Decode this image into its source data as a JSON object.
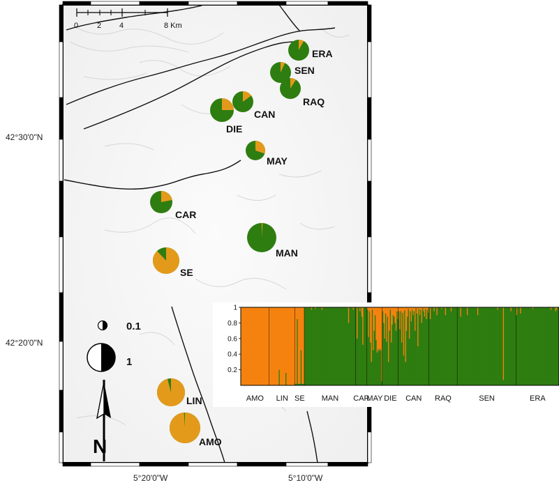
{
  "map": {
    "scale_ticks": [
      "0",
      "2",
      "4",
      "8 Km"
    ],
    "lat_labels": [
      "42°30'0\"N",
      "42°20'0\"N"
    ],
    "lon_labels": [
      "5°20'0\"W",
      "5°10'0\"W"
    ],
    "legend": {
      "small": "0.1",
      "large": "1"
    },
    "north_letter": "N"
  },
  "colors": {
    "green": "#2e7d10",
    "orange": "#e39a1b",
    "orange_bar": "#f5820f",
    "frame": "#000000"
  },
  "populations": [
    {
      "name": "ERA",
      "green": 0.92,
      "orange": 0.08
    },
    {
      "name": "SEN",
      "green": 0.93,
      "orange": 0.07
    },
    {
      "name": "RAQ",
      "green": 0.91,
      "orange": 0.09
    },
    {
      "name": "CAN",
      "green": 0.85,
      "orange": 0.15
    },
    {
      "name": "DIE",
      "green": 0.75,
      "orange": 0.25
    },
    {
      "name": "MAY",
      "green": 0.7,
      "orange": 0.3
    },
    {
      "name": "CAR",
      "green": 0.78,
      "orange": 0.22
    },
    {
      "name": "MAN",
      "green": 0.99,
      "orange": 0.01
    },
    {
      "name": "SE",
      "green": 0.12,
      "orange": 0.88
    },
    {
      "name": "LIN",
      "green": 0.04,
      "orange": 0.96
    },
    {
      "name": "AMO",
      "green": 0.01,
      "orange": 0.99
    }
  ],
  "chart_data": {
    "type": "stacked-bar",
    "y_ticks": [
      "0.2",
      "0.4",
      "0.6",
      "0.8",
      "1"
    ],
    "ylim": [
      0,
      1
    ],
    "groups": [
      "AMO",
      "LIN",
      "SE",
      "MAN",
      "CAR",
      "MAY",
      "DIE",
      "CAN",
      "RAQ",
      "SEN",
      "ERA"
    ],
    "series": [
      "green",
      "orange"
    ],
    "group_green_fraction": {
      "AMO": [
        0,
        0,
        0,
        0,
        0,
        0,
        0,
        0,
        0,
        0,
        0,
        0,
        0,
        0,
        0,
        0,
        0,
        0,
        0,
        0,
        0,
        0,
        0,
        0,
        0,
        0,
        0,
        0,
        0,
        0
      ],
      "LIN": [
        0,
        0,
        0,
        0,
        0,
        0,
        0,
        0,
        0,
        0,
        0.2,
        0,
        0,
        0,
        0,
        0,
        0,
        0.16,
        0,
        0,
        0,
        0,
        0,
        0,
        0,
        0,
        0
      ],
      "SE": [
        0.02,
        0.02,
        0.85,
        0.02,
        0.02,
        0.02,
        0.45,
        0.02,
        0.02,
        0.02
      ],
      "MAN": [
        1,
        1,
        1,
        0.99,
        1,
        1,
        1,
        0.97,
        1,
        1,
        1,
        0.98,
        1,
        1,
        1,
        1,
        1,
        1,
        0.97,
        1,
        1,
        1,
        1,
        1,
        1,
        1,
        1,
        1,
        1,
        1,
        1,
        1,
        1,
        1,
        1,
        1,
        1,
        1,
        1,
        1,
        1,
        1,
        1,
        1,
        1,
        1,
        0.8,
        1,
        1,
        1,
        1,
        0.97,
        1,
        1
      ],
      "CAR": [
        1,
        0.6,
        1,
        1,
        0.95,
        1,
        0.88,
        0.52,
        1,
        1,
        1,
        1
      ],
      "MAY": [
        0.97,
        0.62,
        0.95,
        0.55,
        0.3,
        0.97,
        0.45,
        0.7,
        0.9,
        0.58,
        0.42,
        0.46,
        0.44,
        0.47,
        0.45,
        0.05
      ],
      "DIE": [
        0.95,
        0.8,
        0.6,
        0.92,
        0.56,
        0.88,
        0.3,
        0.7,
        0.97,
        0.55,
        0.78,
        0.9,
        0.88,
        0.8,
        0.7,
        0.95,
        0.85
      ],
      "CAN": [
        0.95,
        0.72,
        0.95,
        0.55,
        0.93,
        0.38,
        0.96,
        0.3,
        0.7,
        0.88,
        0.98,
        0.6,
        0.95,
        0.82,
        0.97,
        0.9,
        0.95,
        0.7,
        0.99,
        0.92,
        0.5,
        0.98,
        0.9,
        0.97,
        0.8,
        0.99,
        0.95,
        0.88,
        0.98,
        0.85,
        0.97,
        0.93
      ],
      "RAQ": [
        1,
        0.85,
        1,
        1,
        1,
        0.95,
        1,
        1,
        0.9,
        1,
        1,
        1,
        1,
        0.98,
        1,
        1,
        1,
        0.9,
        1,
        1,
        1,
        1,
        1,
        0.95,
        1,
        1,
        1,
        1,
        1,
        1
      ],
      "SEN": [
        1,
        1,
        1,
        0.88,
        1,
        1,
        1,
        1,
        1,
        1,
        0.9,
        1,
        1,
        1,
        1,
        1,
        1,
        1,
        1,
        1,
        1,
        0.9,
        1,
        1,
        1,
        1,
        1,
        1,
        1,
        1,
        1,
        1,
        1,
        1,
        1,
        1,
        1,
        1,
        1,
        1,
        1,
        1,
        0.97,
        1,
        1,
        1,
        1,
        1,
        0.07,
        1,
        1,
        1,
        1,
        1,
        1,
        1,
        0.95,
        1,
        1,
        1,
        1,
        1
      ],
      "ERA": [
        0.9,
        1,
        1,
        1,
        0.92,
        1,
        1,
        1,
        1,
        1,
        1,
        1,
        1,
        1,
        1,
        1,
        1,
        0.98,
        1,
        1,
        1,
        1,
        1,
        1,
        1,
        1,
        1,
        1,
        1,
        1,
        1,
        1,
        1,
        1,
        1,
        1,
        0.97,
        1,
        1,
        1,
        1,
        0.95,
        0.97,
        1,
        1
      ]
    }
  }
}
